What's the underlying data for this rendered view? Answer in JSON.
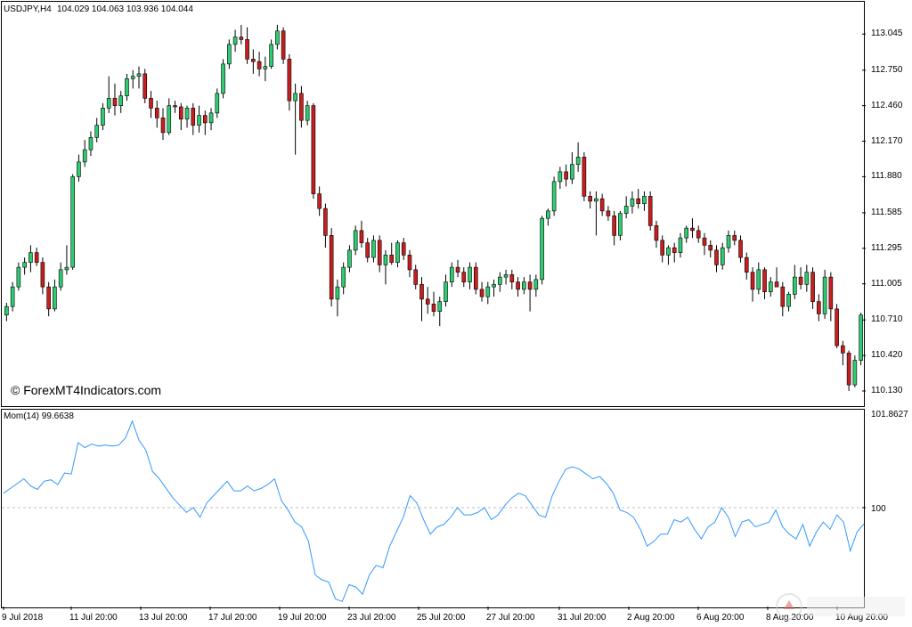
{
  "header": {
    "symbol": "USDJPY,H4",
    "ohlc": "104.029 104.063 103.936 104.044"
  },
  "indicator": {
    "name": "Mom(14) 99.6638",
    "top_value": "101.8627",
    "level_value": "100"
  },
  "watermark": "© ForexMT4Indicators.com",
  "y_axis": [
    "113.045",
    "112.750",
    "112.460",
    "112.170",
    "111.880",
    "111.585",
    "111.295",
    "111.005",
    "110.710",
    "110.420",
    "110.130"
  ],
  "x_axis": [
    "9 Jul 2018",
    "11 Jul 20:00",
    "13 Jul 20:00",
    "17 Jul 20:00",
    "19 Jul 20:00",
    "23 Jul 20:00",
    "25 Jul 20:00",
    "27 Jul 20:00",
    "31 Jul 20:00",
    "2 Aug 20:00",
    "6 Aug 20:00",
    "8 Aug 20:00",
    "10 Aug 20:00"
  ],
  "colors": {
    "bull": "#2ecc71",
    "bear": "#c81e1e",
    "momentum": "#3399ff",
    "grid": "#c0c0c0"
  },
  "chart_data": [
    {
      "type": "candlestick",
      "title": "USDJPY,H4",
      "ylim": [
        110.05,
        113.25
      ],
      "candles": [
        [
          110.75,
          110.85,
          110.7,
          110.82
        ],
        [
          110.82,
          111.02,
          110.78,
          110.98
        ],
        [
          110.98,
          111.18,
          110.95,
          111.14
        ],
        [
          111.14,
          111.22,
          111.08,
          111.18
        ],
        [
          111.18,
          111.32,
          111.1,
          111.26
        ],
        [
          111.26,
          111.3,
          111.15,
          111.18
        ],
        [
          111.18,
          111.22,
          110.92,
          110.98
        ],
        [
          110.98,
          111.02,
          110.74,
          110.8
        ],
        [
          110.8,
          111.04,
          110.78,
          110.98
        ],
        [
          110.98,
          111.18,
          110.95,
          111.12
        ],
        [
          111.12,
          111.32,
          111.08,
          111.14
        ],
        [
          111.14,
          111.9,
          111.12,
          111.88
        ],
        [
          111.88,
          112.06,
          111.84,
          112.0
        ],
        [
          112.0,
          112.18,
          111.96,
          112.1
        ],
        [
          112.1,
          112.25,
          112.05,
          112.2
        ],
        [
          112.2,
          112.36,
          112.16,
          112.3
        ],
        [
          112.3,
          112.48,
          112.26,
          112.44
        ],
        [
          112.44,
          112.7,
          112.4,
          112.52
        ],
        [
          112.52,
          112.64,
          112.38,
          112.46
        ],
        [
          112.46,
          112.58,
          112.4,
          112.54
        ],
        [
          112.54,
          112.72,
          112.5,
          112.68
        ],
        [
          112.68,
          112.75,
          112.6,
          112.7
        ],
        [
          112.7,
          112.78,
          112.6,
          112.72
        ],
        [
          112.72,
          112.76,
          112.48,
          112.52
        ],
        [
          112.52,
          112.58,
          112.36,
          112.44
        ],
        [
          112.44,
          112.5,
          112.28,
          112.36
        ],
        [
          112.36,
          112.44,
          112.18,
          112.24
        ],
        [
          112.24,
          112.52,
          112.22,
          112.46
        ],
        [
          112.46,
          112.5,
          112.4,
          112.45
        ],
        [
          112.45,
          112.48,
          112.26,
          112.35
        ],
        [
          112.35,
          112.46,
          112.28,
          112.44
        ],
        [
          112.44,
          112.48,
          112.22,
          112.3
        ],
        [
          112.3,
          112.46,
          112.24,
          112.38
        ],
        [
          112.38,
          112.42,
          112.22,
          112.32
        ],
        [
          112.32,
          112.44,
          112.26,
          112.4
        ],
        [
          112.4,
          112.6,
          112.36,
          112.56
        ],
        [
          112.56,
          112.84,
          112.52,
          112.8
        ],
        [
          112.8,
          113.0,
          112.76,
          112.96
        ],
        [
          112.96,
          113.08,
          112.9,
          113.02
        ],
        [
          113.02,
          113.12,
          112.96,
          113.0
        ],
        [
          113.0,
          113.1,
          112.8,
          112.84
        ],
        [
          112.84,
          112.92,
          112.72,
          112.82
        ],
        [
          112.82,
          112.9,
          112.7,
          112.76
        ],
        [
          112.76,
          112.86,
          112.66,
          112.78
        ],
        [
          112.78,
          113.0,
          112.76,
          112.96
        ],
        [
          112.96,
          113.12,
          112.92,
          113.07
        ],
        [
          113.07,
          113.1,
          112.8,
          112.84
        ],
        [
          112.84,
          112.88,
          112.42,
          112.5
        ],
        [
          112.5,
          112.64,
          112.06,
          112.56
        ],
        [
          112.56,
          112.62,
          112.28,
          112.34
        ],
        [
          112.34,
          112.5,
          112.3,
          112.46
        ],
        [
          112.46,
          112.48,
          111.7,
          111.74
        ],
        [
          111.74,
          111.8,
          111.56,
          111.62
        ],
        [
          111.62,
          111.66,
          111.3,
          111.4
        ],
        [
          111.4,
          111.46,
          110.82,
          110.88
        ],
        [
          110.88,
          111.04,
          110.74,
          110.98
        ],
        [
          110.98,
          111.18,
          110.92,
          111.14
        ],
        [
          111.14,
          111.32,
          111.1,
          111.28
        ],
        [
          111.28,
          111.48,
          111.24,
          111.44
        ],
        [
          111.44,
          111.52,
          111.3,
          111.34
        ],
        [
          111.34,
          111.38,
          111.18,
          111.22
        ],
        [
          111.22,
          111.4,
          111.18,
          111.36
        ],
        [
          111.36,
          111.4,
          111.1,
          111.16
        ],
        [
          111.16,
          111.28,
          111.0,
          111.24
        ],
        [
          111.24,
          111.34,
          111.16,
          111.18
        ],
        [
          111.18,
          111.36,
          111.14,
          111.34
        ],
        [
          111.34,
          111.38,
          111.2,
          111.24
        ],
        [
          111.24,
          111.28,
          111.06,
          111.12
        ],
        [
          111.12,
          111.16,
          110.96,
          111.0
        ],
        [
          111.0,
          111.06,
          110.7,
          110.88
        ],
        [
          110.88,
          110.98,
          110.76,
          110.84
        ],
        [
          110.84,
          110.94,
          110.74,
          110.78
        ],
        [
          110.78,
          110.9,
          110.66,
          110.86
        ],
        [
          110.86,
          111.08,
          110.82,
          111.02
        ],
        [
          111.02,
          111.18,
          110.98,
          111.14
        ],
        [
          111.14,
          111.2,
          111.06,
          111.1
        ],
        [
          111.1,
          111.14,
          110.98,
          111.02
        ],
        [
          111.02,
          111.18,
          110.96,
          111.14
        ],
        [
          111.14,
          111.18,
          110.92,
          110.96
        ],
        [
          110.96,
          111.02,
          110.86,
          110.9
        ],
        [
          110.9,
          111.02,
          110.84,
          110.98
        ],
        [
          110.98,
          111.04,
          110.9,
          111.0
        ],
        [
          111.0,
          111.1,
          110.94,
          111.06
        ],
        [
          111.06,
          111.12,
          111.0,
          111.08
        ],
        [
          111.08,
          111.12,
          110.96,
          111.02
        ],
        [
          111.02,
          111.06,
          110.9,
          110.96
        ],
        [
          110.96,
          111.06,
          110.92,
          111.02
        ],
        [
          111.02,
          111.08,
          110.78,
          110.96
        ],
        [
          110.96,
          111.08,
          110.9,
          111.04
        ],
        [
          111.04,
          111.56,
          111.0,
          111.54
        ],
        [
          111.54,
          111.62,
          111.48,
          111.6
        ],
        [
          111.6,
          111.88,
          111.56,
          111.84
        ],
        [
          111.84,
          111.96,
          111.78,
          111.92
        ],
        [
          111.92,
          111.98,
          111.8,
          111.86
        ],
        [
          111.86,
          112.08,
          111.82,
          111.98
        ],
        [
          111.98,
          112.16,
          111.92,
          112.04
        ],
        [
          112.04,
          112.08,
          111.68,
          111.72
        ],
        [
          111.72,
          111.76,
          111.62,
          111.68
        ],
        [
          111.68,
          111.76,
          111.4,
          111.7
        ],
        [
          111.7,
          111.74,
          111.56,
          111.6
        ],
        [
          111.6,
          111.64,
          111.52,
          111.56
        ],
        [
          111.56,
          111.6,
          111.32,
          111.4
        ],
        [
          111.4,
          111.6,
          111.36,
          111.58
        ],
        [
          111.58,
          111.72,
          111.54,
          111.64
        ],
        [
          111.64,
          111.76,
          111.58,
          111.7
        ],
        [
          111.7,
          111.78,
          111.62,
          111.66
        ],
        [
          111.66,
          111.76,
          111.6,
          111.72
        ],
        [
          111.72,
          111.76,
          111.44,
          111.48
        ],
        [
          111.48,
          111.52,
          111.3,
          111.36
        ],
        [
          111.36,
          111.4,
          111.18,
          111.24
        ],
        [
          111.24,
          111.32,
          111.16,
          111.3
        ],
        [
          111.3,
          111.34,
          111.18,
          111.26
        ],
        [
          111.26,
          111.42,
          111.22,
          111.38
        ],
        [
          111.38,
          111.48,
          111.34,
          111.46
        ],
        [
          111.46,
          111.54,
          111.38,
          111.44
        ],
        [
          111.44,
          111.48,
          111.34,
          111.38
        ],
        [
          111.38,
          111.42,
          111.24,
          111.32
        ],
        [
          111.32,
          111.36,
          111.22,
          111.28
        ],
        [
          111.28,
          111.32,
          111.1,
          111.16
        ],
        [
          111.16,
          111.34,
          111.12,
          111.3
        ],
        [
          111.3,
          111.44,
          111.26,
          111.4
        ],
        [
          111.4,
          111.44,
          111.32,
          111.36
        ],
        [
          111.36,
          111.4,
          111.18,
          111.22
        ],
        [
          111.22,
          111.26,
          111.04,
          111.1
        ],
        [
          111.1,
          111.14,
          110.86,
          110.96
        ],
        [
          110.96,
          111.18,
          110.92,
          111.12
        ],
        [
          111.12,
          111.14,
          110.88,
          110.94
        ],
        [
          110.94,
          111.06,
          110.9,
          111.02
        ],
        [
          111.02,
          111.14,
          110.98,
          110.98
        ],
        [
          110.98,
          111.02,
          110.74,
          110.82
        ],
        [
          110.82,
          110.94,
          110.78,
          110.92
        ],
        [
          110.92,
          111.16,
          110.88,
          111.06
        ],
        [
          111.06,
          111.14,
          110.96,
          111.0
        ],
        [
          111.0,
          111.16,
          110.94,
          111.1
        ],
        [
          111.1,
          111.14,
          110.8,
          110.86
        ],
        [
          110.86,
          110.92,
          110.7,
          110.76
        ],
        [
          110.76,
          111.12,
          110.72,
          111.06
        ],
        [
          111.06,
          111.1,
          110.7,
          110.8
        ],
        [
          110.8,
          110.84,
          110.48,
          110.5
        ],
        [
          110.5,
          110.54,
          110.34,
          110.44
        ],
        [
          110.44,
          110.46,
          110.13,
          110.18
        ],
        [
          110.18,
          110.42,
          110.16,
          110.38
        ],
        [
          110.38,
          110.77,
          110.34,
          110.75
        ]
      ]
    },
    {
      "type": "line",
      "title": "Mom(14) 99.6638",
      "ylim": [
        98.0,
        102.0
      ],
      "reference_level": 100,
      "values": [
        100.3,
        100.4,
        100.5,
        100.6,
        100.45,
        100.38,
        100.55,
        100.58,
        100.48,
        100.72,
        100.7,
        101.35,
        101.25,
        101.32,
        101.28,
        101.3,
        101.28,
        101.3,
        101.45,
        101.8,
        101.4,
        101.2,
        100.75,
        100.6,
        100.4,
        100.2,
        100.05,
        99.9,
        100.0,
        99.8,
        100.1,
        100.25,
        100.4,
        100.55,
        100.35,
        100.35,
        100.45,
        100.35,
        100.4,
        100.48,
        100.6,
        100.15,
        99.95,
        99.7,
        99.6,
        99.3,
        98.6,
        98.5,
        98.45,
        98.1,
        98.05,
        98.4,
        98.35,
        98.2,
        98.6,
        98.8,
        98.75,
        99.2,
        99.5,
        99.8,
        100.25,
        100.1,
        99.75,
        99.45,
        99.6,
        99.65,
        99.8,
        100.0,
        99.85,
        99.85,
        99.9,
        100.0,
        99.75,
        99.85,
        100.05,
        100.2,
        100.3,
        100.25,
        100.05,
        99.85,
        99.8,
        100.25,
        100.55,
        100.8,
        100.85,
        100.8,
        100.7,
        100.6,
        100.65,
        100.5,
        100.3,
        99.95,
        99.9,
        99.8,
        99.55,
        99.2,
        99.3,
        99.45,
        99.45,
        99.75,
        99.7,
        99.8,
        99.55,
        99.35,
        99.6,
        99.7,
        100.0,
        99.8,
        99.4,
        99.7,
        99.75,
        99.6,
        99.65,
        99.7,
        99.95,
        99.6,
        99.45,
        99.35,
        99.65,
        99.2,
        99.5,
        99.7,
        99.55,
        99.85,
        99.7,
        99.1,
        99.5,
        99.66
      ]
    }
  ]
}
